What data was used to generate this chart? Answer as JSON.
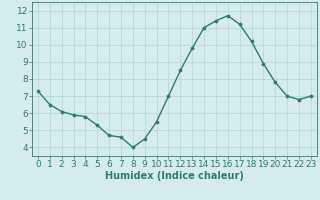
{
  "x": [
    0,
    1,
    2,
    3,
    4,
    5,
    6,
    7,
    8,
    9,
    10,
    11,
    12,
    13,
    14,
    15,
    16,
    17,
    18,
    19,
    20,
    21,
    22,
    23
  ],
  "y": [
    7.3,
    6.5,
    6.1,
    5.9,
    5.8,
    5.3,
    4.7,
    4.6,
    4.0,
    4.5,
    5.5,
    7.0,
    8.5,
    9.8,
    11.0,
    11.4,
    11.7,
    11.2,
    10.2,
    8.9,
    7.8,
    7.0,
    6.8,
    7.0
  ],
  "xlabel": "Humidex (Indice chaleur)",
  "ylim": [
    3.5,
    12.5
  ],
  "xlim": [
    -0.5,
    23.5
  ],
  "yticks": [
    4,
    5,
    6,
    7,
    8,
    9,
    10,
    11,
    12
  ],
  "xticks": [
    0,
    1,
    2,
    3,
    4,
    5,
    6,
    7,
    8,
    9,
    10,
    11,
    12,
    13,
    14,
    15,
    16,
    17,
    18,
    19,
    20,
    21,
    22,
    23
  ],
  "line_color": "#2e7d6e",
  "marker_color": "#2e7d6e",
  "bg_color": "#d6ecec",
  "grid_color": "#b8d8d8",
  "tick_color": "#2e7d6e",
  "xlabel_fontsize": 7,
  "tick_fontsize": 6.5
}
